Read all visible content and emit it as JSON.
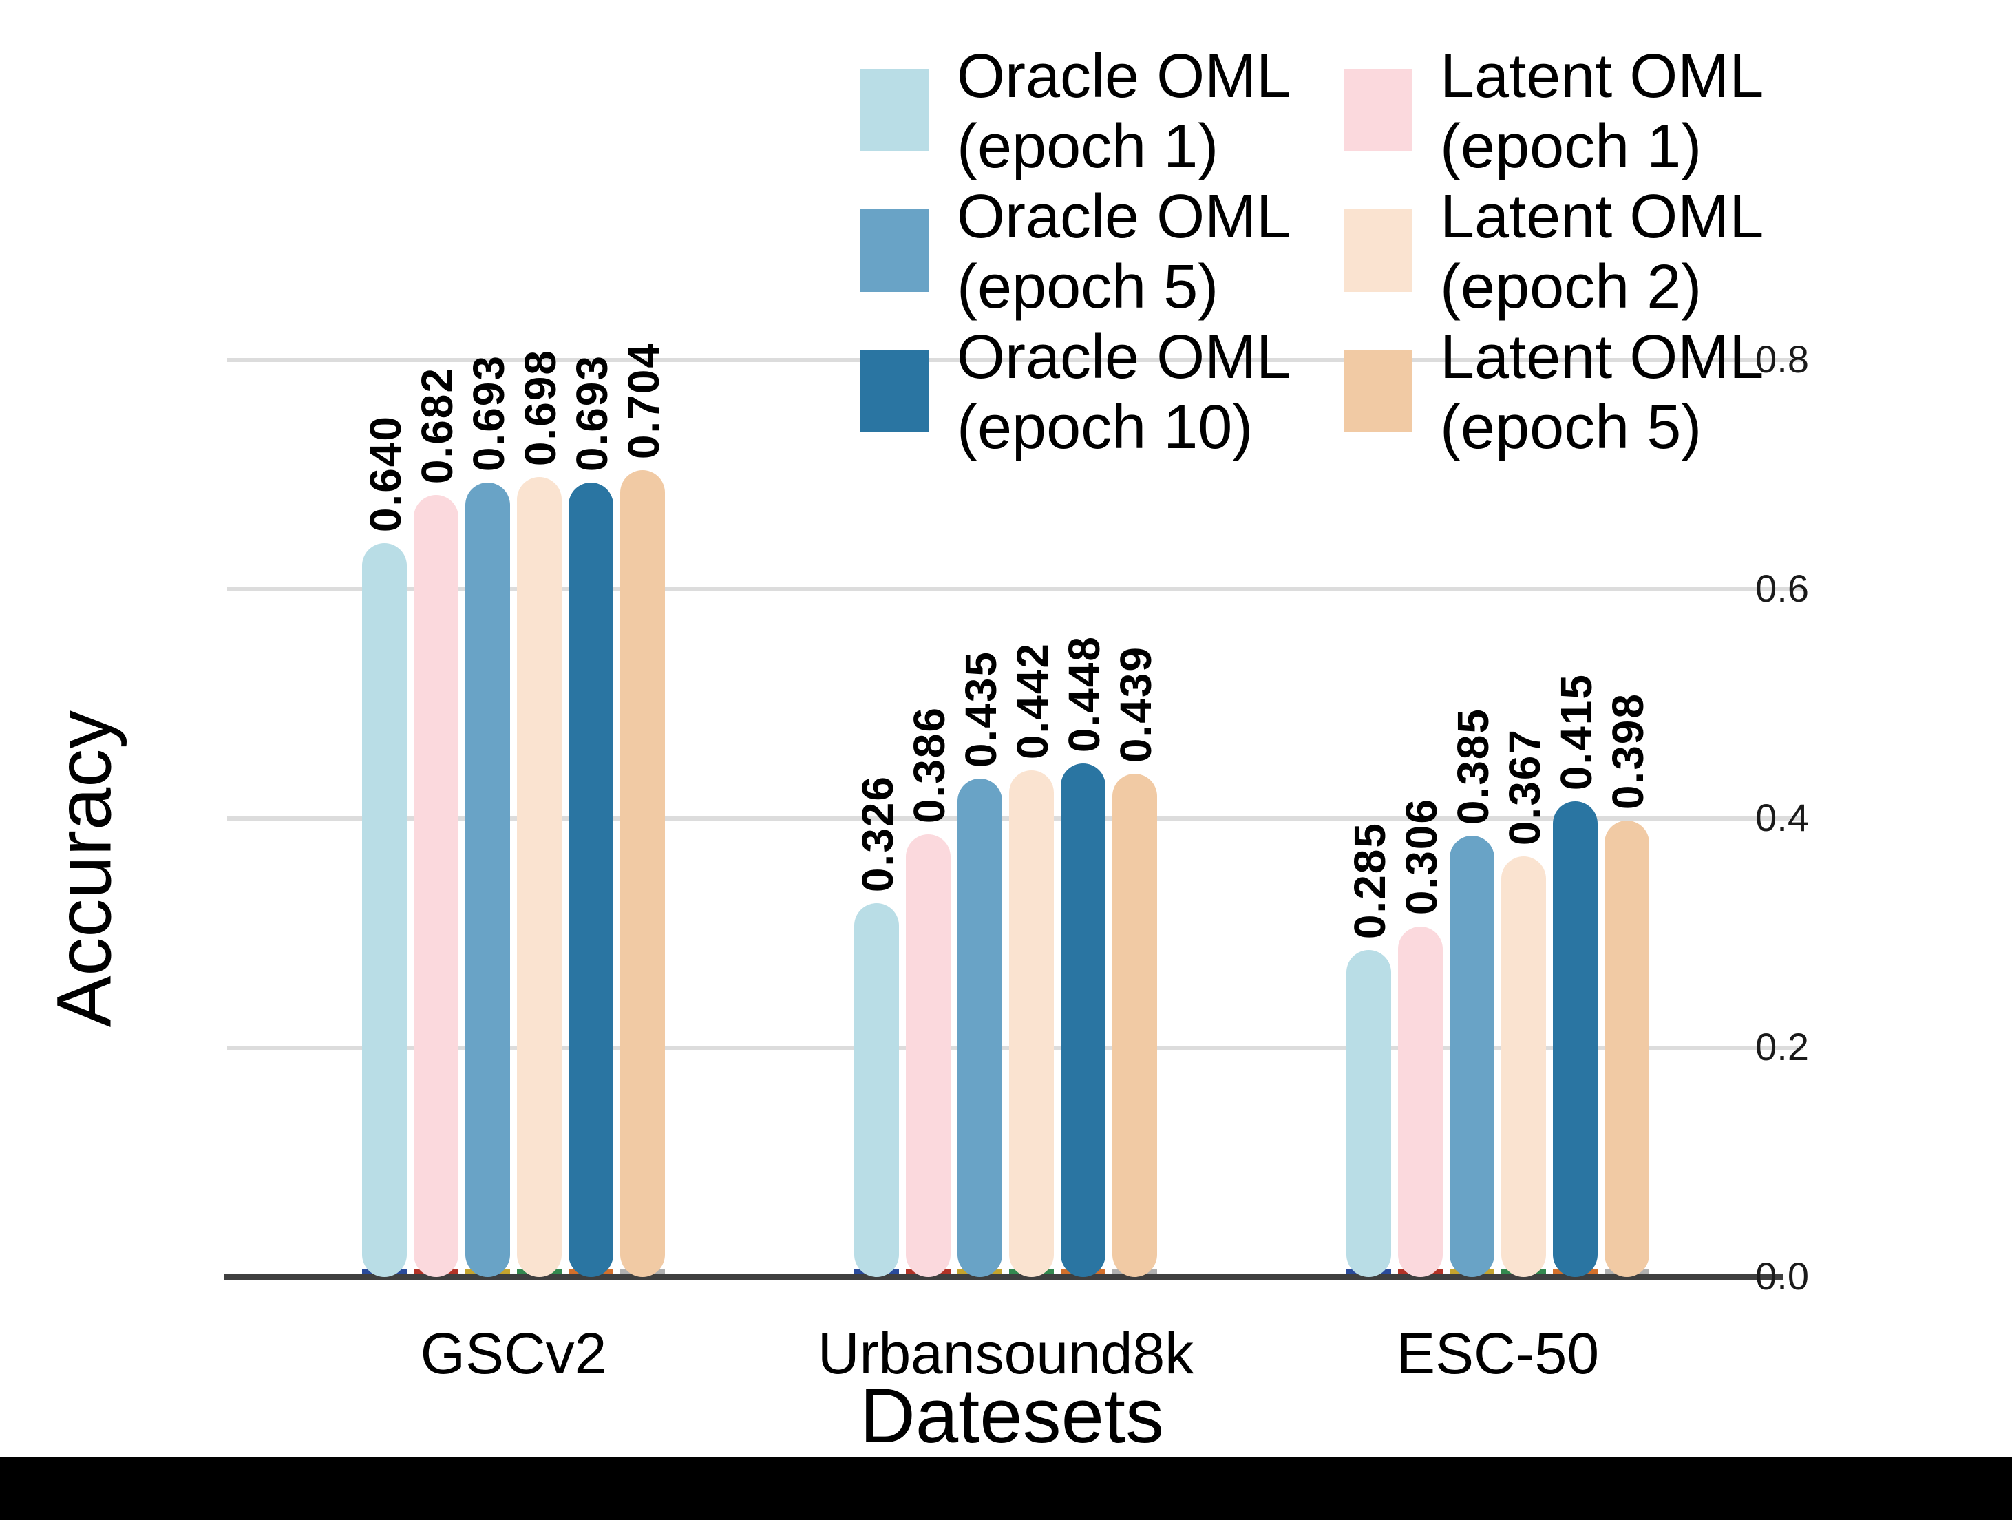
{
  "chart_data": {
    "type": "bar",
    "title": "",
    "xlabel": "Datesets",
    "ylabel": "Accuracy",
    "categories": [
      "GSCv2",
      "Urbansound8k",
      "ESC-50"
    ],
    "series": [
      {
        "name": "Oracle OML (epoch 1)",
        "legend_line1": "Oracle OML",
        "legend_line2": "(epoch 1)",
        "color": "#B9DDE6",
        "values": [
          0.64,
          0.326,
          0.285
        ]
      },
      {
        "name": "Latent OML (epoch 1)",
        "legend_line1": "Latent OML",
        "legend_line2": "(epoch 1)",
        "color": "#FBD9DD",
        "values": [
          0.682,
          0.386,
          0.306
        ]
      },
      {
        "name": "Oracle OML (epoch 5)",
        "legend_line1": "Oracle OML",
        "legend_line2": "(epoch 5)",
        "color": "#69A3C6",
        "values": [
          0.693,
          0.435,
          0.385
        ]
      },
      {
        "name": "Latent OML (epoch 2)",
        "legend_line1": "Latent OML",
        "legend_line2": "(epoch 2)",
        "color": "#FAE3D0",
        "values": [
          0.698,
          0.442,
          0.367
        ]
      },
      {
        "name": "Oracle OML (epoch 10)",
        "legend_line1": "Oracle OML",
        "legend_line2": "(epoch 10)",
        "color": "#2A75A2",
        "values": [
          0.693,
          0.448,
          0.415
        ]
      },
      {
        "name": "Latent OML (epoch 5)",
        "legend_line1": "Latent OML",
        "legend_line2": "(epoch 5)",
        "color": "#F1CAA4",
        "values": [
          0.704,
          0.439,
          0.398
        ]
      }
    ],
    "value_label_decimals": 3,
    "yticks": [
      "0.0",
      "0.2",
      "0.4",
      "0.6",
      "0.8"
    ],
    "ylim": [
      0,
      0.8
    ],
    "grid": "horizontal-light-gray",
    "legend_position": "top",
    "legend_columns": [
      [
        0,
        2,
        4
      ],
      [
        1,
        3,
        5
      ]
    ],
    "baseline_strip_colors": [
      "#2A4B9B",
      "#B23327",
      "#C5A42E",
      "#33884F",
      "#D3702C",
      "#B0B0B0"
    ],
    "colors": {
      "gridline": "#DCDCDC",
      "axis_line": "#3F3F3F",
      "letterbox_band": "#000000"
    }
  }
}
